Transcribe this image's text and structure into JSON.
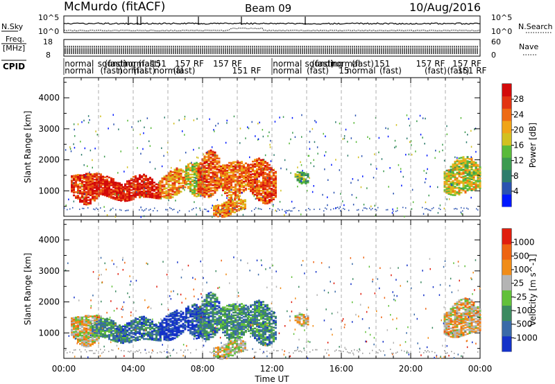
{
  "header": {
    "station": "McMurdo (fitACF)",
    "beam": "Beam 09",
    "date": "10/Aug/2016"
  },
  "noise_panel": {
    "left_label": "N.Sky",
    "right_label": "N.Search",
    "left_ticks": [
      "10^5",
      "10^0"
    ],
    "right_ticks": [
      "10^5",
      "10^0"
    ]
  },
  "freq_panel": {
    "left_label_1": "Freq.",
    "left_label_2": "[MHz]",
    "right_label": "Nave",
    "left_ticks": [
      "18",
      "8"
    ],
    "right_ticks": [
      "60",
      "0"
    ]
  },
  "cpid": {
    "label": "CPID",
    "row1": [
      {
        "text": "normal",
        "hour": 0.05
      },
      {
        "text": "sounding",
        "hour": 1.95
      },
      {
        "text": "(fast)",
        "hour": 2.35
      },
      {
        "text": "normal",
        "hour": 3.4
      },
      {
        "text": "(fast)",
        "hour": 4.3
      },
      {
        "text": "151",
        "hour": 5.0
      },
      {
        "text": "157 RF",
        "hour": 6.4
      },
      {
        "text": "157 RF",
        "hour": 8.6
      },
      {
        "text": "normal",
        "hour": 12.05
      },
      {
        "text": "sounding",
        "hour": 13.9
      },
      {
        "text": "(fast)",
        "hour": 14.3
      },
      {
        "text": "normal",
        "hour": 15.4
      },
      {
        "text": "(fast)",
        "hour": 16.6
      },
      {
        "text": "151",
        "hour": 17.9
      },
      {
        "text": "157 RF",
        "hour": 20.3
      },
      {
        "text": "157 RF",
        "hour": 22.4
      }
    ],
    "row2": [
      {
        "text": "normal",
        "hour": 0.05
      },
      {
        "text": "(fast)",
        "hour": 2.1
      },
      {
        "text": "normal",
        "hour": 3.1
      },
      {
        "text": "(fast)",
        "hour": 4.0
      },
      {
        "text": "normal",
        "hour": 5.2
      },
      {
        "text": "(fast)",
        "hour": 6.3
      },
      {
        "text": "151 RF",
        "hour": 9.7
      },
      {
        "text": "normal",
        "hour": 12.05
      },
      {
        "text": "(fast)",
        "hour": 14.0
      },
      {
        "text": "15",
        "hour": 15.85
      },
      {
        "text": "normal",
        "hour": 16.3
      },
      {
        "text": "(fast)",
        "hour": 18.2
      },
      {
        "text": "(fast)",
        "hour": 20.8
      },
      {
        "text": "(fast)",
        "hour": 22.1
      },
      {
        "text": "151 RF",
        "hour": 22.7
      }
    ]
  },
  "chart_data": [
    {
      "type": "heatmap",
      "title": "Power",
      "ylabel": "Slant Range [km]",
      "xlabel": "Time UT",
      "xlim": [
        0,
        24
      ],
      "ylim": [
        180,
        4650
      ],
      "yticks": [
        1000,
        2000,
        3000,
        4000
      ],
      "colorbar": {
        "label": "Power [dB]",
        "ticks": [
          "4",
          "8",
          "12",
          "16",
          "20",
          "24",
          "28"
        ],
        "colors": [
          "#0018ff",
          "#2a52b0",
          "#2e7c6c",
          "#3c9a50",
          "#5aba3a",
          "#d2c020",
          "#f0a418",
          "#ee6a14",
          "#e23412",
          "#d30a0a"
        ]
      },
      "echo_regions": [
        {
          "t0": 0.4,
          "t1": 2.2,
          "r0": 650,
          "r1": 1650,
          "level": 0.85
        },
        {
          "t0": 1.6,
          "t1": 3.6,
          "r0": 700,
          "r1": 1350,
          "level": 0.9
        },
        {
          "t0": 3.0,
          "t1": 5.6,
          "r0": 650,
          "r1": 1400,
          "level": 0.92
        },
        {
          "t0": 5.5,
          "t1": 7.0,
          "r0": 750,
          "r1": 1650,
          "level": 0.7
        },
        {
          "t0": 7.0,
          "t1": 8.1,
          "r0": 900,
          "r1": 2000,
          "level": 0.55
        },
        {
          "t0": 7.7,
          "t1": 9.0,
          "r0": 700,
          "r1": 2200,
          "level": 0.8
        },
        {
          "t0": 9.0,
          "t1": 10.6,
          "r0": 800,
          "r1": 2050,
          "level": 0.75
        },
        {
          "t0": 10.6,
          "t1": 12.2,
          "r0": 600,
          "r1": 2000,
          "level": 0.8
        },
        {
          "t0": 8.6,
          "t1": 10.5,
          "r0": 200,
          "r1": 700,
          "level": 0.7
        },
        {
          "t0": 13.3,
          "t1": 14.1,
          "r0": 1300,
          "r1": 1700,
          "level": 0.4
        },
        {
          "t0": 21.9,
          "t1": 24.0,
          "r0": 800,
          "r1": 2000,
          "level": 0.55
        }
      ]
    },
    {
      "type": "heatmap",
      "title": "Velocity",
      "ylabel": "Slant Range [km]",
      "xlabel": "Time UT",
      "xlim": [
        0,
        24
      ],
      "ylim": [
        180,
        4650
      ],
      "yticks": [
        1000,
        2000,
        3000,
        4000
      ],
      "colorbar": {
        "label": "Velocity [m s^-1]",
        "ticks": [
          "1000",
          "500",
          "100",
          "25",
          "-25",
          "-100",
          "-500",
          "-1000"
        ],
        "colors": [
          "#1432c8",
          "#3a6aa8",
          "#3c8a60",
          "#62c03a",
          "#b4b4b4",
          "#f08c18",
          "#ee6412",
          "#e01e0e"
        ]
      },
      "echo_regions": [
        {
          "t0": 0.4,
          "t1": 2.2,
          "r0": 650,
          "r1": 1650,
          "level": 0.6
        },
        {
          "t0": 1.6,
          "t1": 3.6,
          "r0": 700,
          "r1": 1350,
          "level": 0.3
        },
        {
          "t0": 3.0,
          "t1": 5.6,
          "r0": 650,
          "r1": 1400,
          "level": 0.22
        },
        {
          "t0": 5.5,
          "t1": 7.0,
          "r0": 750,
          "r1": 1650,
          "level": 0.05
        },
        {
          "t0": 7.0,
          "t1": 8.1,
          "r0": 900,
          "r1": 2000,
          "level": 0.1
        },
        {
          "t0": 7.7,
          "t1": 9.0,
          "r0": 700,
          "r1": 2200,
          "level": 0.25
        },
        {
          "t0": 9.0,
          "t1": 10.6,
          "r0": 800,
          "r1": 2050,
          "level": 0.3
        },
        {
          "t0": 10.6,
          "t1": 12.2,
          "r0": 600,
          "r1": 2000,
          "level": 0.28
        },
        {
          "t0": 8.6,
          "t1": 10.5,
          "r0": 200,
          "r1": 700,
          "level": 0.55
        },
        {
          "t0": 13.3,
          "t1": 14.1,
          "r0": 1300,
          "r1": 1700,
          "level": 0.62
        },
        {
          "t0": 21.9,
          "t1": 24.0,
          "r0": 800,
          "r1": 2000,
          "level": 0.62
        }
      ]
    }
  ],
  "x_axis": {
    "ticks": [
      "00:00",
      "04:00",
      "08:00",
      "12:00",
      "16:00",
      "20:00",
      "00:00"
    ],
    "tick_hours": [
      0,
      4,
      8,
      12,
      16,
      20,
      24
    ],
    "label": "Time UT"
  }
}
